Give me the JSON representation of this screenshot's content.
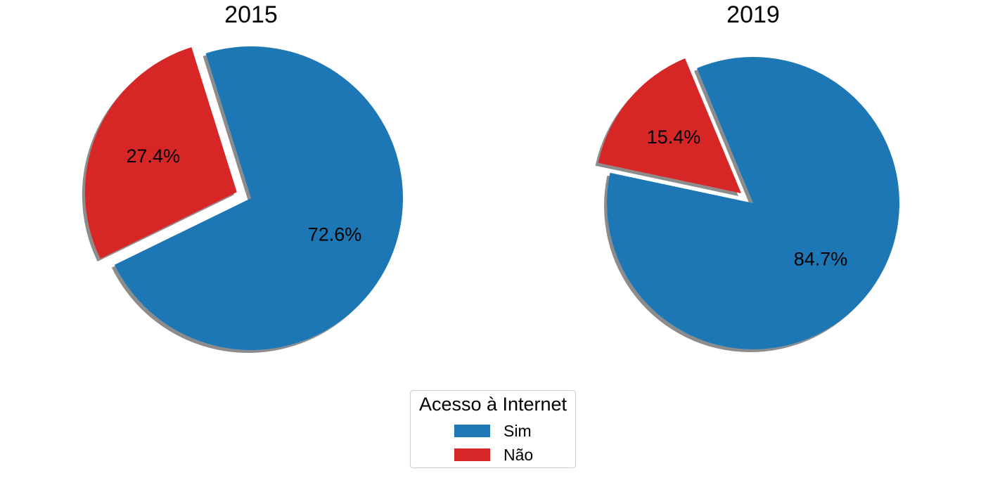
{
  "chart_data": [
    {
      "type": "pie",
      "title": "2015",
      "labels": [
        "Sim",
        "Não"
      ],
      "values": [
        72.6,
        27.4
      ],
      "value_labels": [
        "72.6%",
        "27.4%"
      ],
      "colors": [
        "#1f77b4",
        "#d62728"
      ],
      "exploded": [
        "Não"
      ],
      "shadow": true
    },
    {
      "type": "pie",
      "title": "2019",
      "labels": [
        "Sim",
        "Não"
      ],
      "values": [
        84.7,
        15.4
      ],
      "value_labels": [
        "84.7%",
        "15.4%"
      ],
      "colors": [
        "#1f77b4",
        "#d62728"
      ],
      "exploded": [
        "Não"
      ],
      "shadow": true
    }
  ],
  "legend": {
    "title": "Acesso à Internet",
    "placement": "bottom-center",
    "items": [
      {
        "label": "Sim",
        "color": "#1f77b4"
      },
      {
        "label": "Não",
        "color": "#d62728"
      }
    ]
  }
}
